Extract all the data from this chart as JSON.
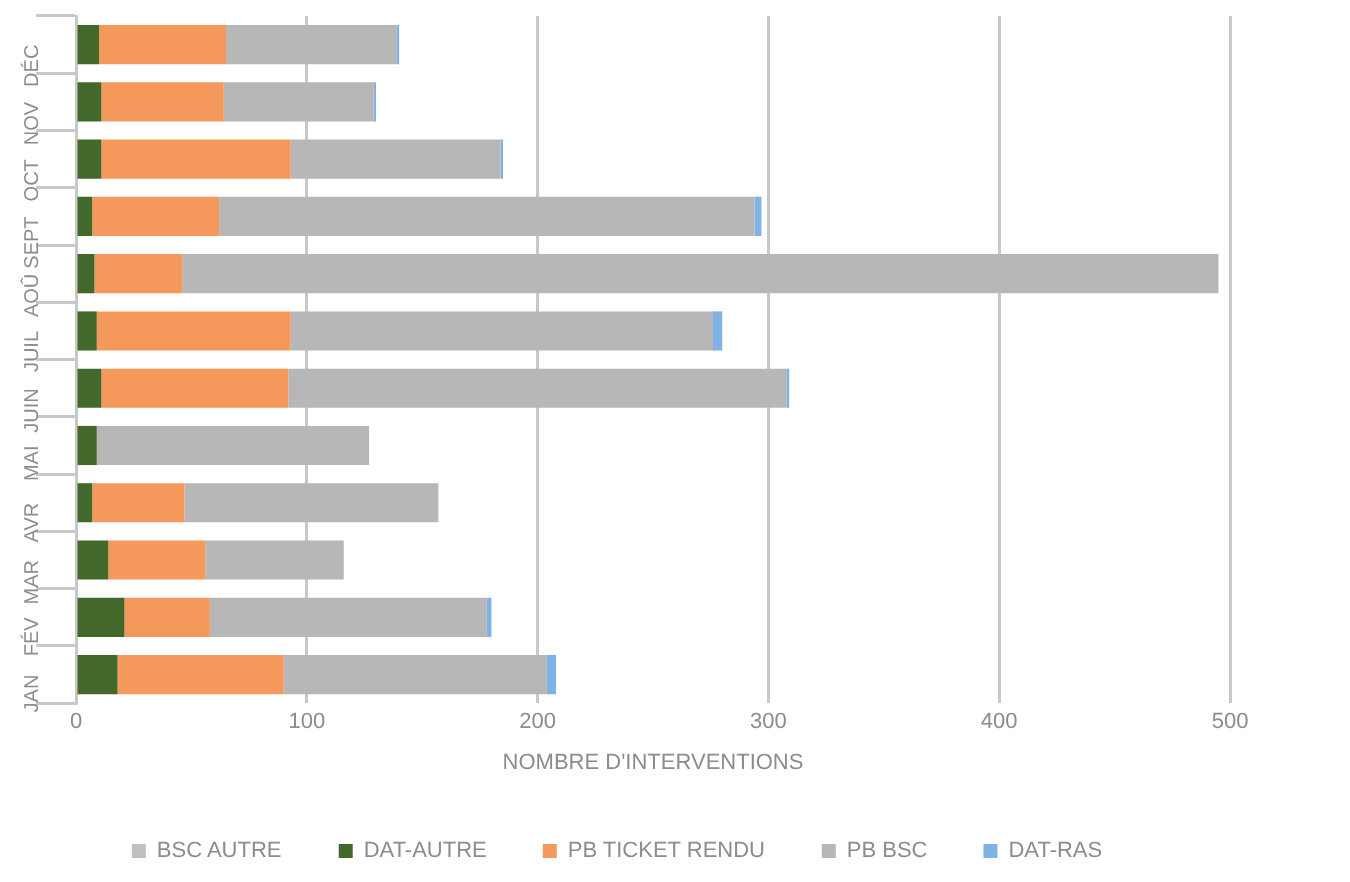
{
  "chart_data": {
    "type": "bar",
    "orientation": "horizontal",
    "stacked": true,
    "xlabel": "NOMBRE D'INTERVENTIONS",
    "categories": [
      "DÉC",
      "NOV",
      "OCT",
      "SEPT",
      "AOÛ",
      "JUIL",
      "JUIN",
      "MAI",
      "AVR",
      "MAR",
      "FÉV",
      "JAN"
    ],
    "series": [
      {
        "name": "BSC AUTRE",
        "color": "#bfbfbf",
        "values": [
          null,
          null,
          null,
          null,
          null,
          null,
          null,
          null,
          null,
          null,
          null,
          null
        ]
      },
      {
        "name": "DAT-AUTRE",
        "color": "#43682b",
        "values": [
          10,
          11,
          11,
          7,
          8,
          9,
          11,
          9,
          7,
          14,
          21,
          18
        ]
      },
      {
        "name": "PB TICKET RENDU",
        "color": "#f4995b",
        "values": [
          55,
          53,
          82,
          55,
          38,
          84,
          81,
          0,
          40,
          42,
          37,
          72
        ]
      },
      {
        "name": "PB BSC",
        "color": "#b7b7b7",
        "values": [
          74,
          65,
          91,
          232,
          449,
          183,
          216,
          118,
          110,
          60,
          120,
          114
        ]
      },
      {
        "name": "DAT-RAS",
        "color": "#7fb2e5",
        "values": [
          1,
          1,
          1,
          3,
          0,
          4,
          1,
          0,
          0,
          0,
          2,
          4
        ]
      }
    ],
    "xlim": [
      0,
      500
    ],
    "xticks": [
      0,
      100,
      200,
      300,
      400,
      500
    ],
    "grid": "x",
    "legend": "bottom"
  }
}
